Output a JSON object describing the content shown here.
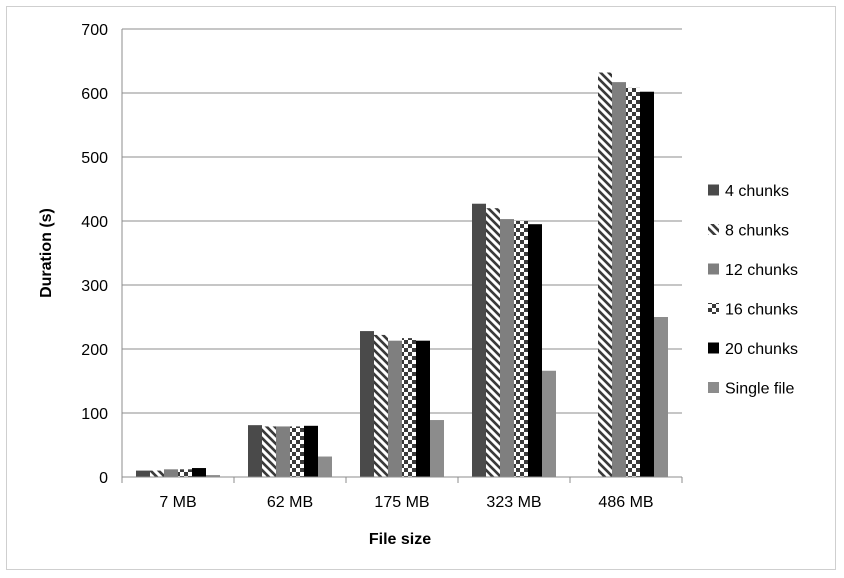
{
  "chart_data": {
    "type": "bar",
    "title": "",
    "xlabel": "File size",
    "ylabel": "Duration (s)",
    "ylim": [
      0,
      700
    ],
    "yticks": [
      0,
      100,
      200,
      300,
      400,
      500,
      600,
      700
    ],
    "grid": true,
    "legend_position": "right",
    "categories": [
      "7 MB",
      "62 MB",
      "175 MB",
      "323 MB",
      "486 MB"
    ],
    "series": [
      {
        "name": "4 chunks",
        "pattern": "solid-dark",
        "color": "#4a4a4a",
        "values": [
          10,
          81,
          228,
          427,
          0
        ]
      },
      {
        "name": "8 chunks",
        "pattern": "diagonal",
        "color": "#4a4a4a",
        "values": [
          10,
          79,
          222,
          420,
          632
        ]
      },
      {
        "name": "12 chunks",
        "pattern": "solid-medium",
        "color": "#7f7f7f",
        "values": [
          12,
          79,
          213,
          403,
          617
        ]
      },
      {
        "name": "16 chunks",
        "pattern": "checker",
        "color": "#3a3a3a",
        "values": [
          12,
          79,
          217,
          400,
          608
        ]
      },
      {
        "name": "20 chunks",
        "pattern": "solid-black",
        "color": "#000000",
        "values": [
          14,
          80,
          213,
          395,
          602
        ]
      },
      {
        "name": "Single file",
        "pattern": "solid-light",
        "color": "#8c8c8c",
        "values": [
          3,
          32,
          89,
          166,
          250
        ]
      }
    ]
  }
}
